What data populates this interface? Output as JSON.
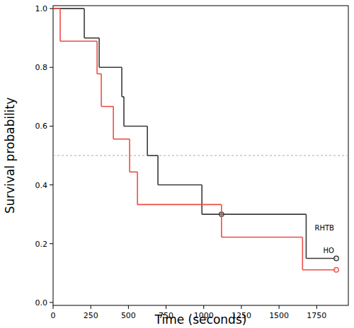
{
  "chart_data": {
    "type": "step",
    "x_label": "Time (seconds)",
    "y_label": "Survival probability",
    "xlim": [
      0,
      1960
    ],
    "ylim": [
      -0.01,
      1.01
    ],
    "xticks": [
      0,
      250,
      500,
      750,
      1000,
      1250,
      1500,
      1750
    ],
    "yticks": [
      {
        "value": 0,
        "label": "0.0"
      },
      0.2,
      0.4,
      0.6,
      0.8,
      {
        "value": 1,
        "label": "1.0"
      }
    ],
    "hline": 0.5,
    "series": [
      {
        "name": "RHTB",
        "color": "#3a3a3a",
        "x": [
          0,
          207,
          306,
          456,
          470,
          626,
          696,
          988,
          1680,
          1880
        ],
        "values": [
          1,
          0.9,
          0.8,
          0.7,
          0.6,
          0.5,
          0.4,
          0.3,
          0.15,
          0.15
        ],
        "censored_x": [
          1118
        ],
        "censored_values": [
          0.3
        ]
      },
      {
        "name": "HO",
        "color": "#ee4c45",
        "x": [
          0,
          47,
          292,
          320,
          400,
          508,
          560,
          1118,
          1656,
          1880
        ],
        "values": [
          1,
          0.889,
          0.778,
          0.667,
          0.556,
          0.444,
          0.333,
          0.222,
          0.111,
          0.111
        ],
        "censored_x": [],
        "censored_values": []
      }
    ]
  }
}
